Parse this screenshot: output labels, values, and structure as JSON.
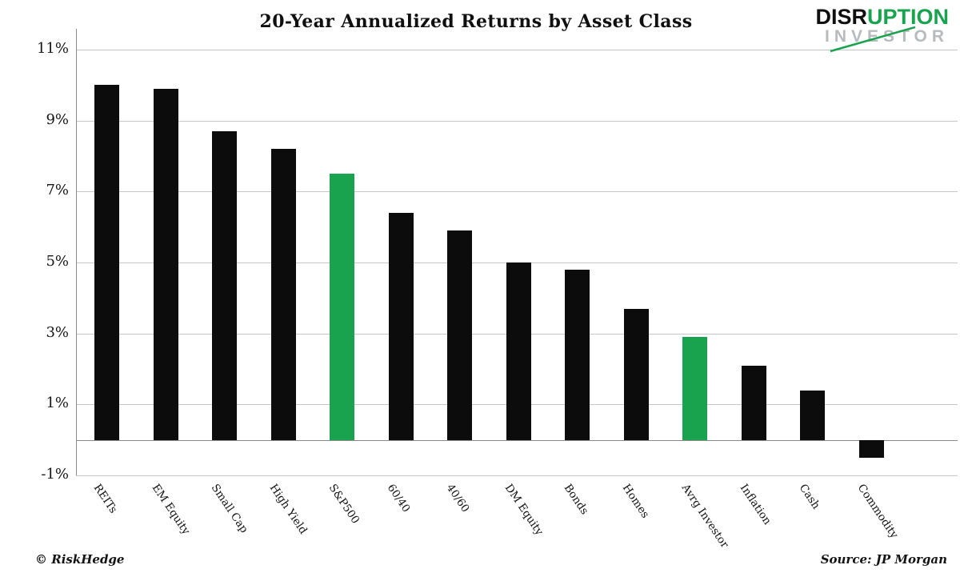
{
  "logo": {
    "part1": "DISR",
    "part2": "UPTION",
    "line2": "INVESTOR",
    "accent": "#1aa34e"
  },
  "footer": {
    "left": "© RiskHedge",
    "right": "Source: JP Morgan"
  },
  "chart_data": {
    "type": "bar",
    "title": "20-Year Annualized Returns by Asset Class",
    "categories": [
      "REITs",
      "EM Equity",
      "Small Cap",
      "High Yield",
      "S&P500",
      "60/40",
      "40/60",
      "DM Equity",
      "Bonds",
      "Homes",
      "Avrg Investor",
      "Inflation",
      "Cash",
      "Commodity"
    ],
    "values": [
      10.0,
      9.9,
      8.7,
      8.2,
      7.5,
      6.4,
      5.9,
      5.0,
      4.8,
      3.7,
      2.9,
      2.1,
      1.4,
      -0.5
    ],
    "highlight_indices": [
      4,
      10
    ],
    "colors": {
      "bar": "#0c0c0c",
      "highlight": "#1aa34e",
      "grid": "#c6c6c6",
      "axis": "#8a8a8a"
    },
    "xlabel": "",
    "ylabel": "",
    "ylim": [
      -1,
      11
    ],
    "yticks": [
      11,
      9,
      7,
      5,
      3,
      1,
      -1
    ],
    "ytick_labels": [
      "11%",
      "9%",
      "7%",
      "5%",
      "3%",
      "1%",
      "-1%"
    ],
    "grid": true,
    "legend": "none",
    "source": "Source: JP Morgan"
  }
}
